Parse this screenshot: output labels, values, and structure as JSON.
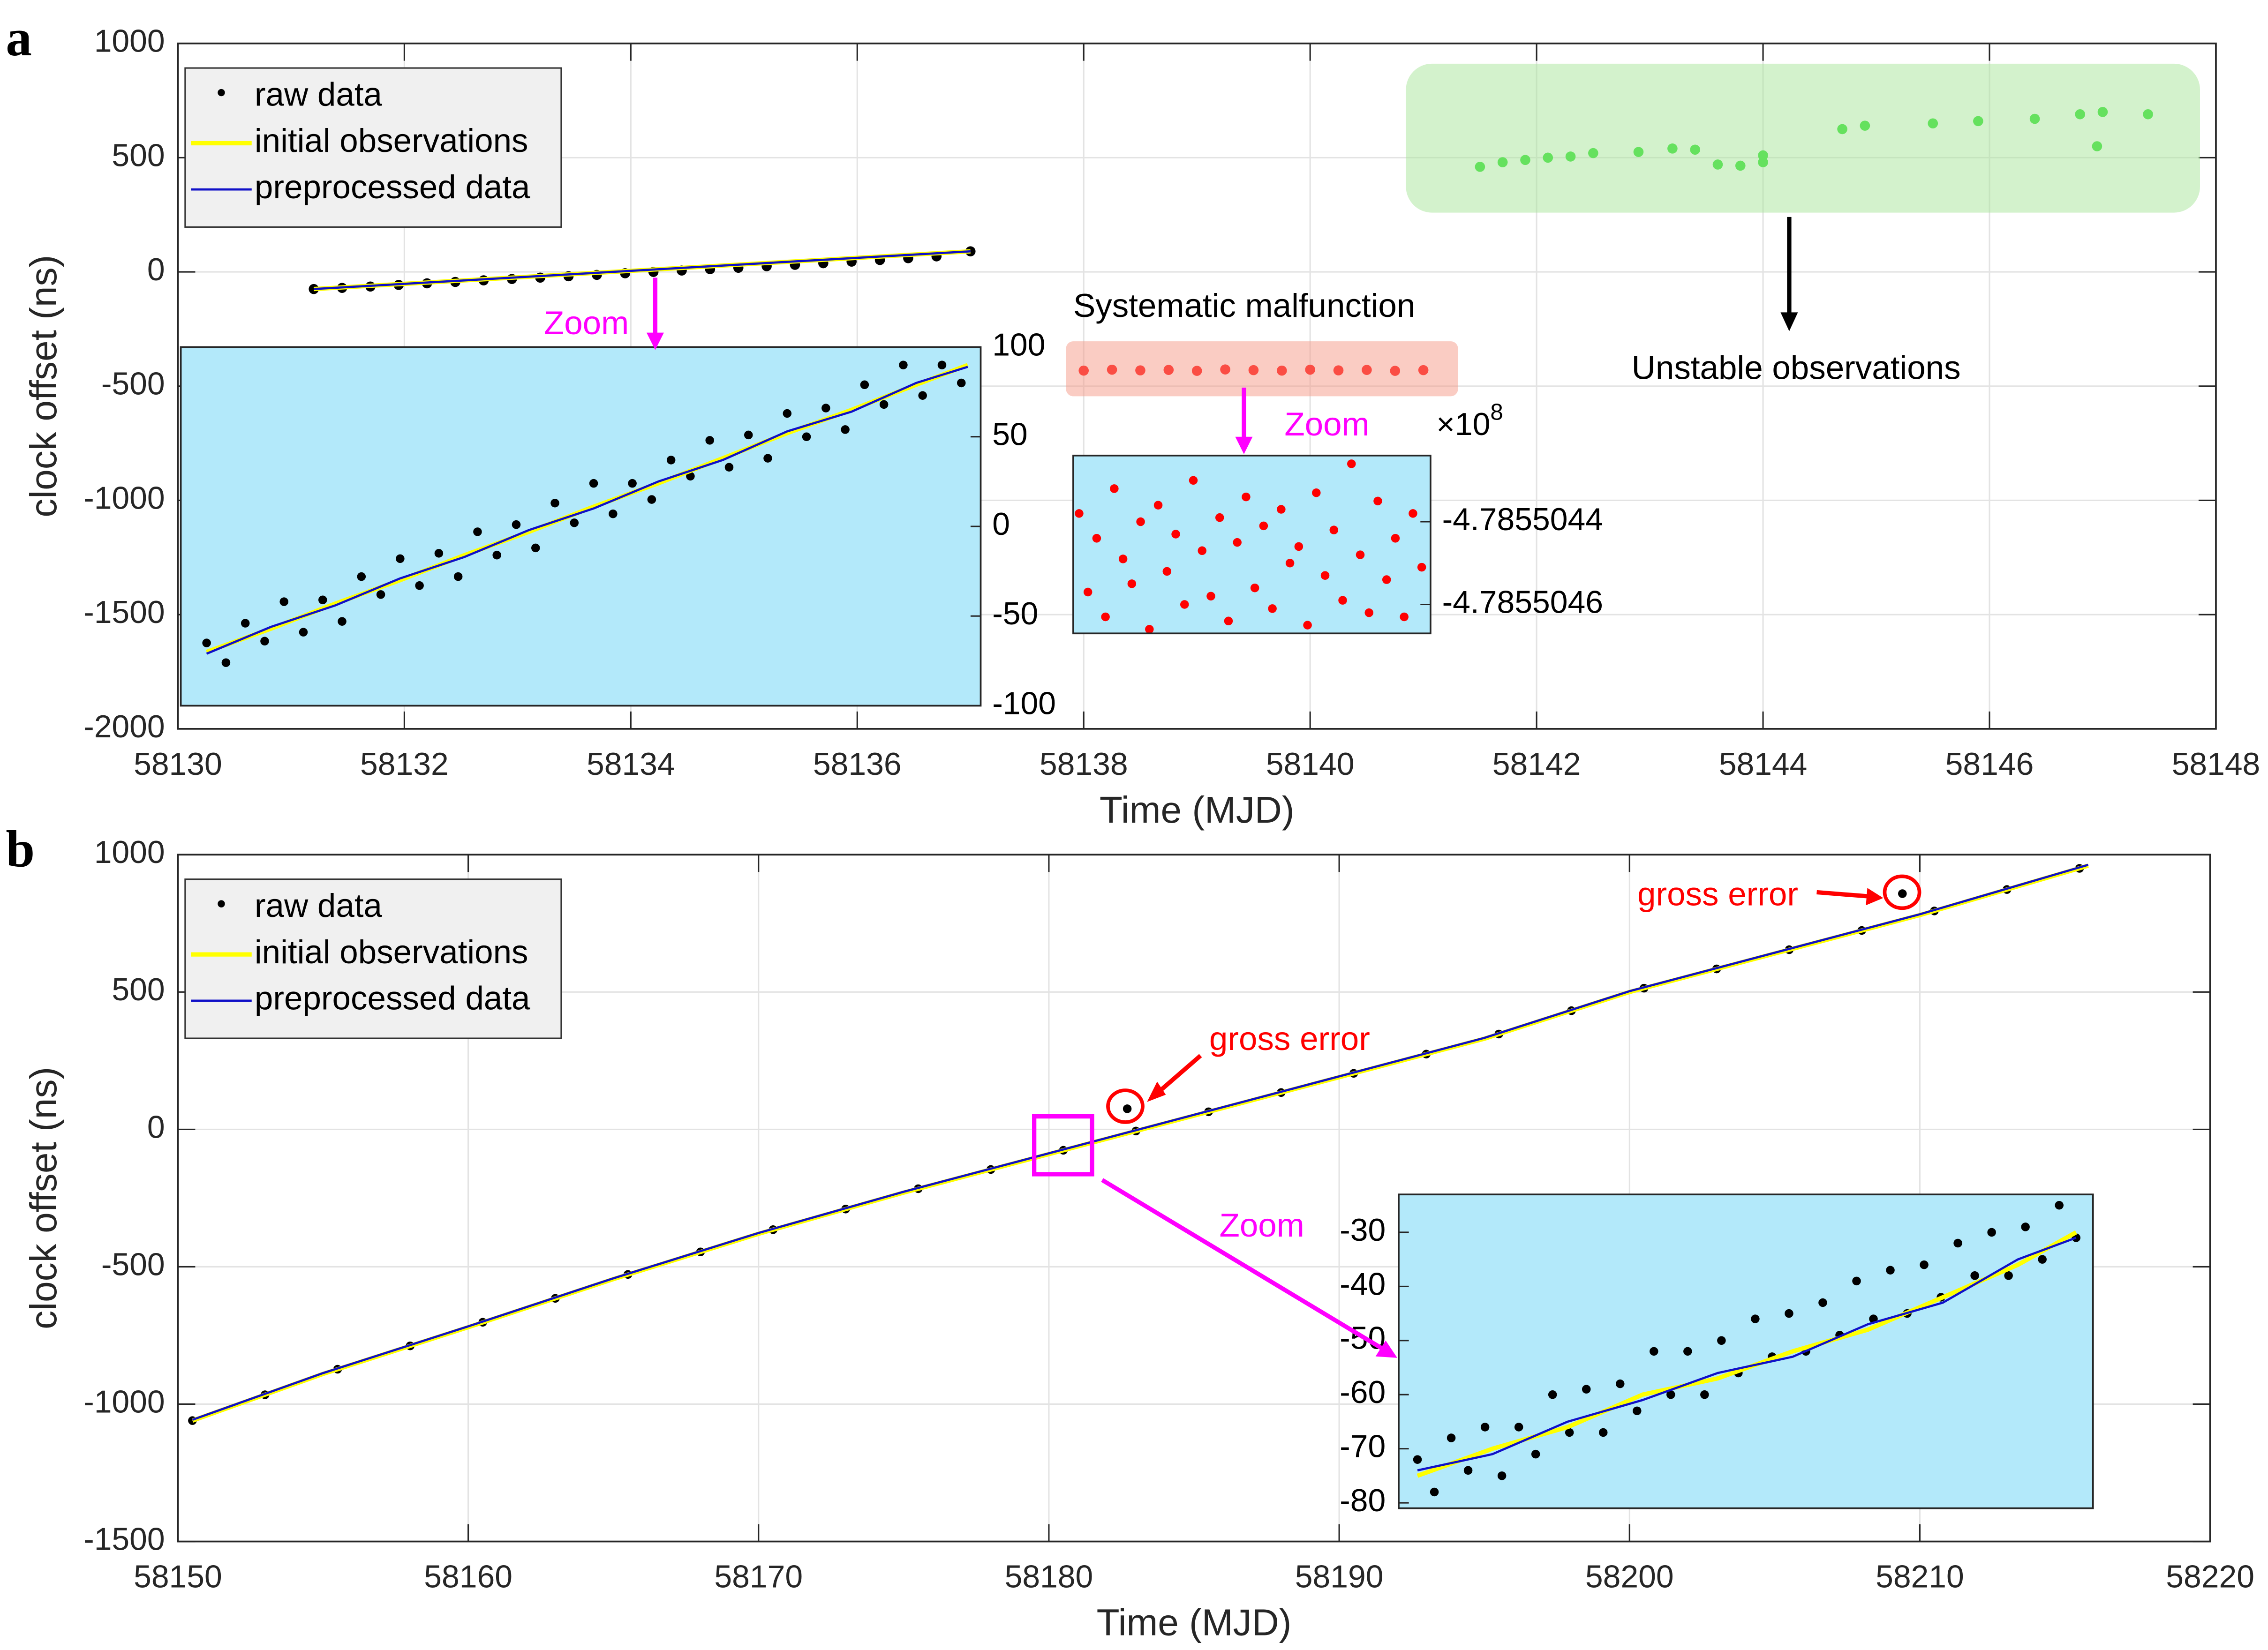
{
  "chart_data": [
    {
      "type": "scatter",
      "panel_label": "a",
      "xlabel": "Time (MJD)",
      "ylabel": "clock offset (ns)",
      "xlim": [
        58130,
        58148
      ],
      "xticks": [
        58130,
        58132,
        58134,
        58136,
        58138,
        58140,
        58142,
        58144,
        58146,
        58148
      ],
      "ylim": [
        -2000,
        1000
      ],
      "yticks": [
        -2000,
        -1500,
        -1000,
        -500,
        0,
        500,
        1000
      ],
      "grid": true,
      "legend": "upper left",
      "series": [
        {
          "name": "raw data",
          "type": "scatter",
          "color": "#000000",
          "x": [
            58131.2,
            58131.45,
            58131.7,
            58131.95,
            58132.2,
            58132.45,
            58132.7,
            58132.95,
            58133.2,
            58133.45,
            58133.7,
            58133.95,
            58134.2,
            58134.45,
            58134.7,
            58134.95,
            58135.2,
            58135.45,
            58135.7,
            58135.95,
            58136.2,
            58136.45,
            58136.7,
            58137.0
          ],
          "values": [
            -75,
            -70,
            -64,
            -57,
            -50,
            -44,
            -37,
            -31,
            -25,
            -19,
            -13,
            -6,
            0,
            6,
            12,
            18,
            25,
            31,
            38,
            45,
            52,
            60,
            68,
            90
          ]
        },
        {
          "name": "initial observations",
          "type": "line",
          "color": "#ffff00",
          "x": [
            58131.2,
            58137.0
          ],
          "values": [
            -75,
            90
          ]
        },
        {
          "name": "preprocessed data",
          "type": "line",
          "color": "#1010c8",
          "x": [
            58131.2,
            58137.0
          ],
          "values": [
            -75,
            90
          ]
        },
        {
          "type": "scatter",
          "color": "#ff0000",
          "x": [
            58138,
            58138.25,
            58138.5,
            58138.75,
            58139,
            58139.25,
            58139.5,
            58139.75,
            58140,
            58140.25,
            58140.5,
            58140.75,
            58141
          ],
          "values": [
            -432,
            -428,
            -431,
            -429,
            -433,
            -427,
            -430,
            -432,
            -428,
            -431,
            -429,
            -433,
            -430
          ]
        },
        {
          "type": "scatter",
          "color": "#22dd22",
          "x": [
            58141.5,
            58141.7,
            58141.9,
            58142.1,
            58142.3,
            58142.5,
            58142.9,
            58143.2,
            58143.4,
            58143.6,
            58143.8,
            58144.0,
            58144.0,
            58144.7,
            58144.9,
            58145.5,
            58145.9,
            58146.4,
            58146.8,
            58146.95,
            58147.0,
            58147.4
          ],
          "values": [
            460,
            480,
            490,
            500,
            505,
            520,
            525,
            540,
            535,
            470,
            465,
            480,
            510,
            625,
            640,
            650,
            660,
            670,
            690,
            550,
            700,
            690
          ]
        }
      ],
      "annotations": [
        {
          "text": "Zoom",
          "color": "#ff00ff"
        },
        {
          "text": "Systematic malfunction",
          "color": "#000000"
        },
        {
          "text": "Zoom",
          "color": "#ff00ff"
        },
        {
          "text": "Unstable observations",
          "color": "#000000"
        }
      ]
    },
    {
      "type": "scatter",
      "xlim": [
        58131,
        58137.2
      ],
      "ylim": [
        -100,
        100
      ],
      "yticks": [
        -100,
        -50,
        0,
        50,
        100
      ],
      "yaxis_location": "right",
      "background": "#b3e9fa",
      "series": [
        {
          "type": "scatter",
          "color": "#000000",
          "x": [
            58131.2,
            58131.35,
            58131.5,
            58131.65,
            58131.8,
            58131.95,
            58132.1,
            58132.25,
            58132.4,
            58132.55,
            58132.7,
            58132.85,
            58133,
            58133.15,
            58133.3,
            58133.45,
            58133.6,
            58133.75,
            58133.9,
            58134.05,
            58134.2,
            58134.35,
            58134.5,
            58134.65,
            58134.8,
            58134.95,
            58135.1,
            58135.25,
            58135.4,
            58135.55,
            58135.7,
            58135.85,
            58136,
            58136.15,
            58136.3,
            58136.45,
            58136.6,
            58136.75,
            58136.9,
            58137.05
          ],
          "values": [
            -65,
            -76,
            -54,
            -64,
            -42,
            -59,
            -41,
            -53,
            -28,
            -38,
            -18,
            -33,
            -15,
            -28,
            -3,
            -16,
            1,
            -12,
            13,
            2,
            24,
            7,
            24,
            15,
            37,
            28,
            48,
            33,
            51,
            38,
            63,
            50,
            66,
            54,
            79,
            68,
            90,
            73,
            90,
            80
          ]
        },
        {
          "type": "line",
          "color": "#ffff00",
          "x": [
            58131.2,
            58131.7,
            58132.2,
            58132.7,
            58133.2,
            58133.7,
            58134.2,
            58134.7,
            58135.2,
            58135.7,
            58136.2,
            58136.7,
            58137.1
          ],
          "values": [
            -70,
            -57,
            -43,
            -30,
            -16,
            -3,
            11,
            24,
            38,
            52,
            65,
            79,
            90
          ]
        },
        {
          "type": "line",
          "color": "#1010c8",
          "x": [
            58131.2,
            58131.7,
            58132.2,
            58132.7,
            58133.2,
            58133.7,
            58134.2,
            58134.7,
            58135.2,
            58135.7,
            58136.2,
            58136.7,
            58137.1
          ],
          "values": [
            -71,
            -56,
            -44,
            -29,
            -17,
            -2,
            10,
            25,
            37,
            53,
            64,
            80,
            89
          ]
        }
      ]
    },
    {
      "type": "scatter",
      "xlim": [
        58138,
        58141.05
      ],
      "ylim": [
        -4.78550467,
        -4.78550424
      ],
      "yticks": [
        -4.7855046,
        -4.7855044
      ],
      "yaxis_location": "right",
      "background": "#b3e9fa",
      "y_multiplier": "×10",
      "y_multiplier_exponent": "8",
      "series": [
        {
          "type": "scatter",
          "color": "#ff0000",
          "x": [
            58138.05,
            58138.125,
            58138.2,
            58138.275,
            58138.35,
            58138.425,
            58138.5,
            58138.575,
            58138.65,
            58138.725,
            58138.8,
            58138.875,
            58138.95,
            58139.025,
            58139.1,
            58139.175,
            58139.25,
            58139.325,
            58139.4,
            58139.475,
            58139.55,
            58139.625,
            58139.7,
            58139.775,
            58139.85,
            58139.925,
            58140,
            58140.075,
            58140.15,
            58140.225,
            58140.3,
            58140.375,
            58140.45,
            58140.525,
            58140.6,
            58140.675,
            58140.75,
            58140.825,
            58140.9,
            58140.975
          ],
          "values": [
            -4.78550438,
            -4.78550457,
            -4.78550444,
            -4.78550463,
            -4.78550432,
            -4.78550449,
            -4.78550455,
            -4.7855044,
            -4.78550466,
            -4.78550436,
            -4.78550452,
            -4.78550443,
            -4.7855046,
            -4.7855043,
            -4.78550447,
            -4.78550458,
            -4.78550439,
            -4.78550464,
            -4.78550445,
            -4.78550434,
            -4.78550456,
            -4.78550441,
            -4.78550461,
            -4.78550437,
            -4.7855045,
            -4.78550446,
            -4.78550465,
            -4.78550433,
            -4.78550453,
            -4.78550442,
            -4.78550459,
            -4.78550426,
            -4.78550448,
            -4.78550462,
            -4.78550435,
            -4.78550454,
            -4.78550444,
            -4.78550463,
            -4.78550438,
            -4.78550451
          ]
        }
      ]
    },
    {
      "type": "scatter",
      "panel_label": "b",
      "xlabel": "Time (MJD)",
      "ylabel": "clock offset (ns)",
      "xlim": [
        58150,
        58220
      ],
      "xticks": [
        58150,
        58160,
        58170,
        58180,
        58190,
        58200,
        58210,
        58220
      ],
      "ylim": [
        -1500,
        1000
      ],
      "yticks": [
        -1500,
        -1000,
        -500,
        0,
        500,
        1000
      ],
      "grid": true,
      "legend": "upper left",
      "series": [
        {
          "name": "raw data",
          "type": "scatter",
          "color": "#000000",
          "x": [
            58150.5,
            58153,
            58155.5,
            58158,
            58160.5,
            58163,
            58165.5,
            58168,
            58170.5,
            58173,
            58175.5,
            58178,
            58180.5,
            58183,
            58185.5,
            58188,
            58190.5,
            58193,
            58195.5,
            58198,
            58200.5,
            58203,
            58205.5,
            58208,
            58210.5,
            58213,
            58215.5,
            58182.7,
            58209.4
          ],
          "values": [
            -1060,
            -966,
            -873,
            -788,
            -702,
            -615,
            -528,
            -446,
            -365,
            -290,
            -216,
            -146,
            -76,
            -6,
            64,
            134,
            204,
            274,
            347,
            432,
            514,
            584,
            654,
            724,
            795,
            873,
            950,
            75,
            858
          ]
        },
        {
          "name": "initial observations",
          "type": "line",
          "color": "#ffff00",
          "x": [
            58150.5,
            58155,
            58160,
            58165,
            58170,
            58175,
            58180,
            58185,
            58190,
            58195,
            58200,
            58205,
            58210,
            58215.8
          ],
          "values": [
            -1060,
            -890,
            -720,
            -545,
            -380,
            -230,
            -90,
            50,
            190,
            330,
            500,
            640,
            780,
            960
          ]
        },
        {
          "name": "preprocessed data",
          "type": "line",
          "color": "#1010c8",
          "x": [
            58150.5,
            58155,
            58160,
            58165,
            58170,
            58175,
            58180,
            58185,
            58190,
            58195,
            58200,
            58205,
            58210,
            58215.8
          ],
          "values": [
            -1057,
            -887,
            -717,
            -542,
            -377,
            -227,
            -87,
            53,
            193,
            333,
            503,
            643,
            783,
            963
          ]
        }
      ],
      "annotations": [
        {
          "text": "gross error",
          "color": "#ff0000"
        },
        {
          "text": "gross error",
          "color": "#ff0000"
        },
        {
          "text": "Zoom",
          "color": "#ff00ff"
        }
      ]
    },
    {
      "type": "scatter",
      "xlim": [
        58179.7,
        58181.55
      ],
      "ylim": [
        -81,
        -23
      ],
      "yticks": [
        -80,
        -70,
        -60,
        -50,
        -40,
        -30
      ],
      "yaxis_location": "left",
      "background": "#b3e9fa",
      "series": [
        {
          "type": "scatter",
          "color": "#000000",
          "x": [
            58179.75,
            58179.795,
            58179.84,
            58179.885,
            58179.93,
            58179.975,
            58180.02,
            58180.065,
            58180.11,
            58180.155,
            58180.2,
            58180.245,
            58180.29,
            58180.335,
            58180.38,
            58180.425,
            58180.47,
            58180.515,
            58180.56,
            58180.605,
            58180.65,
            58180.695,
            58180.74,
            58180.785,
            58180.83,
            58180.875,
            58180.92,
            58180.965,
            58181.01,
            58181.055,
            58181.1,
            58181.145,
            58181.19,
            58181.235,
            58181.28,
            58181.325,
            58181.37,
            58181.415,
            58181.46,
            58181.505
          ],
          "values": [
            -72,
            -78,
            -68,
            -74,
            -66,
            -75,
            -66,
            -71,
            -60,
            -67,
            -59,
            -67,
            -58,
            -63,
            -52,
            -60,
            -52,
            -60,
            -50,
            -56,
            -46,
            -53,
            -45,
            -52,
            -43,
            -49,
            -39,
            -46,
            -37,
            -45,
            -36,
            -42,
            -32,
            -38,
            -30,
            -38,
            -29,
            -35,
            -25,
            -31
          ]
        },
        {
          "type": "line",
          "color": "#ffff00",
          "x": [
            58179.75,
            58179.95,
            58180.15,
            58180.35,
            58180.55,
            58180.75,
            58180.95,
            58181.15,
            58181.35,
            58181.505
          ],
          "values": [
            -75,
            -70,
            -66,
            -60,
            -57,
            -52,
            -48,
            -42,
            -36,
            -30
          ]
        },
        {
          "type": "line",
          "color": "#1010c8",
          "x": [
            58179.75,
            58179.95,
            58180.15,
            58180.35,
            58180.55,
            58180.75,
            58180.95,
            58181.15,
            58181.35,
            58181.505
          ],
          "values": [
            -74,
            -71,
            -65,
            -61,
            -56,
            -53,
            -47,
            -43,
            -35,
            -31
          ]
        }
      ]
    }
  ]
}
